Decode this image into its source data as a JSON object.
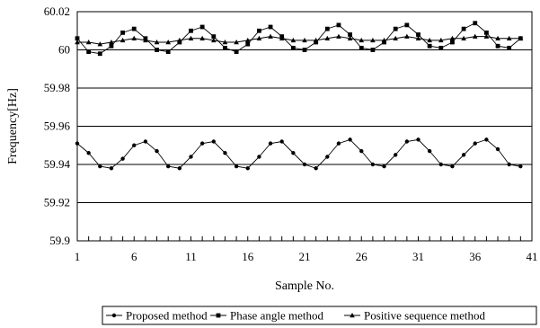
{
  "chart_data": {
    "type": "line",
    "xlabel": "Sample No.",
    "ylabel": "Frequency[Hz]",
    "ylim": [
      59.9,
      60.02
    ],
    "xlim": [
      1,
      41
    ],
    "x_ticks": [
      "1",
      "6",
      "11",
      "16",
      "21",
      "26",
      "31",
      "36",
      "41"
    ],
    "y_ticks": [
      "59.9",
      "59.92",
      "59.94",
      "59.96",
      "59.98",
      "60",
      "60.02"
    ],
    "grid": "horizontal",
    "legend_placement": "bottom",
    "x": [
      1,
      2,
      3,
      4,
      5,
      6,
      7,
      8,
      9,
      10,
      11,
      12,
      13,
      14,
      15,
      16,
      17,
      18,
      19,
      20,
      21,
      22,
      23,
      24,
      25,
      26,
      27,
      28,
      29,
      30,
      31,
      32,
      33,
      34,
      35,
      36,
      37,
      38,
      39,
      40
    ],
    "series": [
      {
        "name": "Proposed method",
        "marker": "circle",
        "values": [
          59.951,
          59.946,
          59.939,
          59.938,
          59.943,
          59.95,
          59.952,
          59.947,
          59.939,
          59.938,
          59.944,
          59.951,
          59.952,
          59.946,
          59.939,
          59.938,
          59.944,
          59.951,
          59.952,
          59.946,
          59.94,
          59.938,
          59.944,
          59.951,
          59.953,
          59.947,
          59.94,
          59.939,
          59.945,
          59.952,
          59.953,
          59.947,
          59.94,
          59.939,
          59.945,
          59.951,
          59.953,
          59.948,
          59.94,
          59.939
        ]
      },
      {
        "name": "Phase angle method",
        "marker": "square",
        "values": [
          60.006,
          59.999,
          59.998,
          60.002,
          60.009,
          60.011,
          60.006,
          60,
          59.999,
          60.004,
          60.01,
          60.012,
          60.007,
          60.001,
          59.999,
          60.003,
          60.01,
          60.012,
          60.007,
          60.001,
          60,
          60.004,
          60.011,
          60.013,
          60.008,
          60.001,
          60,
          60.004,
          60.011,
          60.013,
          60.008,
          60.002,
          60.001,
          60.004,
          60.011,
          60.014,
          60.009,
          60.002,
          60.001,
          60.006
        ]
      },
      {
        "name": "Positive sequence method",
        "marker": "triangle",
        "values": [
          60.004,
          60.004,
          60.003,
          60.004,
          60.005,
          60.006,
          60.005,
          60.004,
          60.004,
          60.005,
          60.006,
          60.006,
          60.005,
          60.004,
          60.004,
          60.005,
          60.006,
          60.007,
          60.006,
          60.005,
          60.005,
          60.005,
          60.006,
          60.007,
          60.006,
          60.005,
          60.005,
          60.005,
          60.006,
          60.007,
          60.006,
          60.005,
          60.005,
          60.006,
          60.006,
          60.007,
          60.007,
          60.006,
          60.006,
          60.006
        ]
      }
    ]
  }
}
